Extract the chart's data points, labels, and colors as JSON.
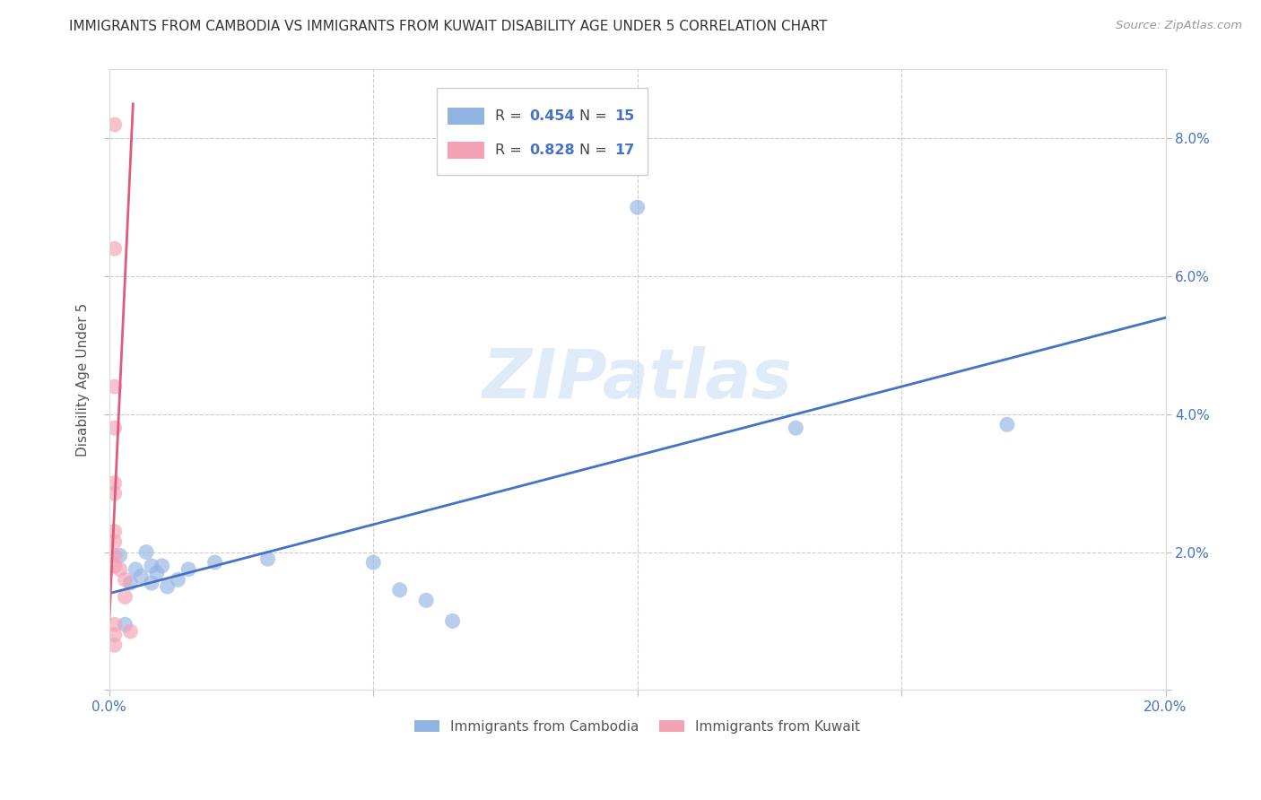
{
  "title": "IMMIGRANTS FROM CAMBODIA VS IMMIGRANTS FROM KUWAIT DISABILITY AGE UNDER 5 CORRELATION CHART",
  "source": "Source: ZipAtlas.com",
  "ylabel": "Disability Age Under 5",
  "watermark": "ZIPatlas",
  "xlim": [
    0.0,
    0.2
  ],
  "ylim": [
    0.0,
    0.09
  ],
  "xticks": [
    0.0,
    0.05,
    0.1,
    0.15,
    0.2
  ],
  "yticks": [
    0.0,
    0.02,
    0.04,
    0.06,
    0.08
  ],
  "ytick_right_labels": [
    "",
    "2.0%",
    "4.0%",
    "6.0%",
    "8.0%"
  ],
  "xtick_labels": [
    "0.0%",
    "",
    "",
    "",
    "20.0%"
  ],
  "cambodia_color": "#92b4e3",
  "kuwait_color": "#f4a0b5",
  "trendline_cambodia_color": "#4472c4",
  "trendline_kuwait_color": "#e05a7a",
  "cambodia_scatter": [
    [
      0.002,
      0.0195
    ],
    [
      0.003,
      0.0095
    ],
    [
      0.004,
      0.0155
    ],
    [
      0.005,
      0.0175
    ],
    [
      0.006,
      0.0165
    ],
    [
      0.007,
      0.02
    ],
    [
      0.008,
      0.018
    ],
    [
      0.008,
      0.0155
    ],
    [
      0.009,
      0.017
    ],
    [
      0.01,
      0.018
    ],
    [
      0.011,
      0.015
    ],
    [
      0.013,
      0.016
    ],
    [
      0.015,
      0.0175
    ],
    [
      0.02,
      0.0185
    ],
    [
      0.03,
      0.019
    ],
    [
      0.05,
      0.0185
    ],
    [
      0.055,
      0.0145
    ],
    [
      0.06,
      0.013
    ],
    [
      0.065,
      0.01
    ],
    [
      0.1,
      0.07
    ],
    [
      0.13,
      0.038
    ],
    [
      0.17,
      0.0385
    ]
  ],
  "kuwait_scatter": [
    [
      0.001,
      0.082
    ],
    [
      0.001,
      0.064
    ],
    [
      0.001,
      0.044
    ],
    [
      0.001,
      0.038
    ],
    [
      0.001,
      0.03
    ],
    [
      0.001,
      0.0285
    ],
    [
      0.001,
      0.023
    ],
    [
      0.001,
      0.0215
    ],
    [
      0.001,
      0.0195
    ],
    [
      0.001,
      0.018
    ],
    [
      0.001,
      0.0095
    ],
    [
      0.001,
      0.008
    ],
    [
      0.001,
      0.0065
    ],
    [
      0.002,
      0.0175
    ],
    [
      0.003,
      0.016
    ],
    [
      0.003,
      0.0135
    ],
    [
      0.004,
      0.0085
    ]
  ],
  "cambodia_trend_x": [
    0.0,
    0.2
  ],
  "cambodia_trend_y": [
    0.014,
    0.054
  ],
  "kuwait_trend_x": [
    0.0,
    0.0045
  ],
  "kuwait_trend_y": [
    0.01,
    0.085
  ]
}
